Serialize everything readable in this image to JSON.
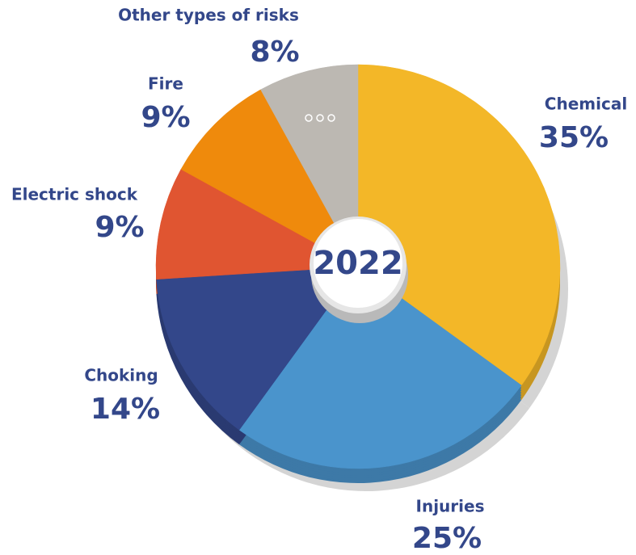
{
  "chart_data": {
    "type": "pie",
    "center_label": "2022",
    "categories": [
      "Chemical",
      "Injuries",
      "Choking",
      "Electric shock",
      "Fire",
      "Other types of risks"
    ],
    "values": [
      35,
      25,
      14,
      9,
      9,
      8
    ],
    "value_labels": [
      "35%",
      "25%",
      "14%",
      "9%",
      "9%",
      "8%"
    ],
    "colors": [
      "#f3b728",
      "#4a94cc",
      "#33478a",
      "#e05531",
      "#ef8a0c",
      "#bcb8b2"
    ]
  }
}
